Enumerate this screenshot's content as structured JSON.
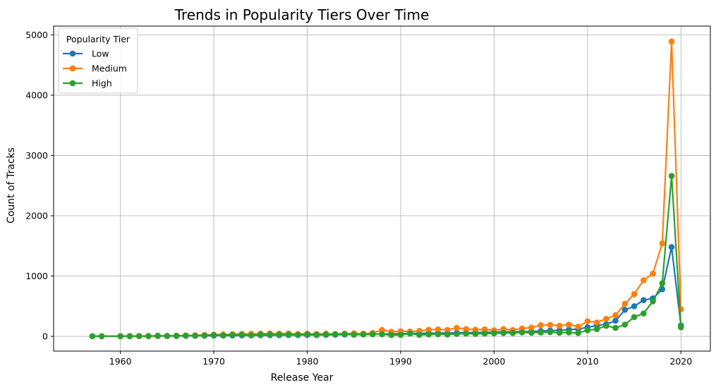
{
  "chart_data": {
    "type": "line",
    "title": "Trends in Popularity Tiers Over Time",
    "xlabel": "Release Year",
    "ylabel": "Count of Tracks",
    "xlim": [
      1952.85,
      2023.15
    ],
    "ylim": [
      -245,
      5145
    ],
    "x_ticks": [
      1960,
      1970,
      1980,
      1990,
      2000,
      2010,
      2020
    ],
    "y_ticks": [
      0,
      1000,
      2000,
      3000,
      4000,
      5000
    ],
    "grid": true,
    "legend": {
      "title": "Popularity Tier",
      "placement": "top-left"
    },
    "series": [
      {
        "name": "Low",
        "color": "#1f77b4",
        "x": [
          1957,
          1958,
          1960,
          1961,
          1962,
          1963,
          1964,
          1965,
          1966,
          1967,
          1968,
          1969,
          1970,
          1971,
          1972,
          1973,
          1974,
          1975,
          1976,
          1977,
          1978,
          1979,
          1980,
          1981,
          1982,
          1983,
          1984,
          1985,
          1986,
          1987,
          1988,
          1989,
          1990,
          1991,
          1992,
          1993,
          1994,
          1995,
          1996,
          1997,
          1998,
          1999,
          2000,
          2001,
          2002,
          2003,
          2004,
          2005,
          2006,
          2007,
          2008,
          2009,
          2010,
          2011,
          2012,
          2013,
          2014,
          2015,
          2016,
          2017,
          2018,
          2019,
          2020
        ],
        "y": [
          2,
          2,
          3,
          3,
          4,
          5,
          5,
          6,
          6,
          8,
          9,
          10,
          12,
          13,
          14,
          15,
          16,
          18,
          19,
          20,
          21,
          22,
          23,
          22,
          24,
          28,
          30,
          32,
          34,
          36,
          38,
          40,
          44,
          48,
          50,
          52,
          54,
          56,
          58,
          60,
          62,
          65,
          70,
          72,
          75,
          78,
          80,
          88,
          95,
          100,
          110,
          120,
          150,
          180,
          200,
          260,
          440,
          500,
          600,
          630,
          780,
          1480,
          180
        ]
      },
      {
        "name": "Medium",
        "color": "#ff7f0e",
        "x": [
          1957,
          1958,
          1960,
          1961,
          1962,
          1963,
          1964,
          1965,
          1966,
          1967,
          1968,
          1969,
          1970,
          1971,
          1972,
          1973,
          1974,
          1975,
          1976,
          1977,
          1978,
          1979,
          1980,
          1981,
          1982,
          1983,
          1984,
          1985,
          1986,
          1987,
          1988,
          1989,
          1990,
          1991,
          1992,
          1993,
          1994,
          1995,
          1996,
          1997,
          1998,
          1999,
          2000,
          2001,
          2002,
          2003,
          2004,
          2005,
          2006,
          2007,
          2008,
          2009,
          2010,
          2011,
          2012,
          2013,
          2014,
          2015,
          2016,
          2017,
          2018,
          2019,
          2020
        ],
        "y": [
          2,
          3,
          3,
          4,
          4,
          5,
          6,
          8,
          12,
          15,
          18,
          22,
          28,
          30,
          35,
          40,
          42,
          45,
          48,
          45,
          48,
          40,
          45,
          40,
          45,
          40,
          45,
          50,
          45,
          55,
          105,
          75,
          85,
          80,
          90,
          110,
          115,
          105,
          140,
          120,
          110,
          115,
          100,
          120,
          105,
          130,
          145,
          185,
          190,
          175,
          195,
          160,
          250,
          230,
          290,
          350,
          540,
          700,
          930,
          1040,
          1540,
          4890,
          450
        ]
      },
      {
        "name": "High",
        "color": "#2ca02c",
        "x": [
          1957,
          1958,
          1960,
          1961,
          1962,
          1963,
          1964,
          1965,
          1966,
          1967,
          1968,
          1969,
          1970,
          1971,
          1972,
          1973,
          1974,
          1975,
          1976,
          1977,
          1978,
          1979,
          1980,
          1981,
          1982,
          1983,
          1984,
          1985,
          1986,
          1987,
          1988,
          1989,
          1990,
          1991,
          1992,
          1993,
          1994,
          1995,
          1996,
          1997,
          1998,
          1999,
          2000,
          2001,
          2002,
          2003,
          2004,
          2005,
          2006,
          2007,
          2008,
          2009,
          2010,
          2011,
          2012,
          2013,
          2014,
          2015,
          2016,
          2017,
          2018,
          2019,
          2020
        ],
        "y": [
          2,
          2,
          2,
          3,
          4,
          3,
          10,
          5,
          8,
          12,
          10,
          15,
          22,
          18,
          25,
          28,
          15,
          30,
          30,
          28,
          30,
          25,
          35,
          28,
          30,
          35,
          40,
          28,
          30,
          35,
          35,
          22,
          25,
          45,
          25,
          30,
          35,
          30,
          40,
          45,
          40,
          45,
          50,
          55,
          55,
          65,
          60,
          65,
          70,
          60,
          65,
          55,
          100,
          120,
          175,
          140,
          195,
          320,
          380,
          580,
          880,
          2660,
          150
        ]
      }
    ]
  }
}
